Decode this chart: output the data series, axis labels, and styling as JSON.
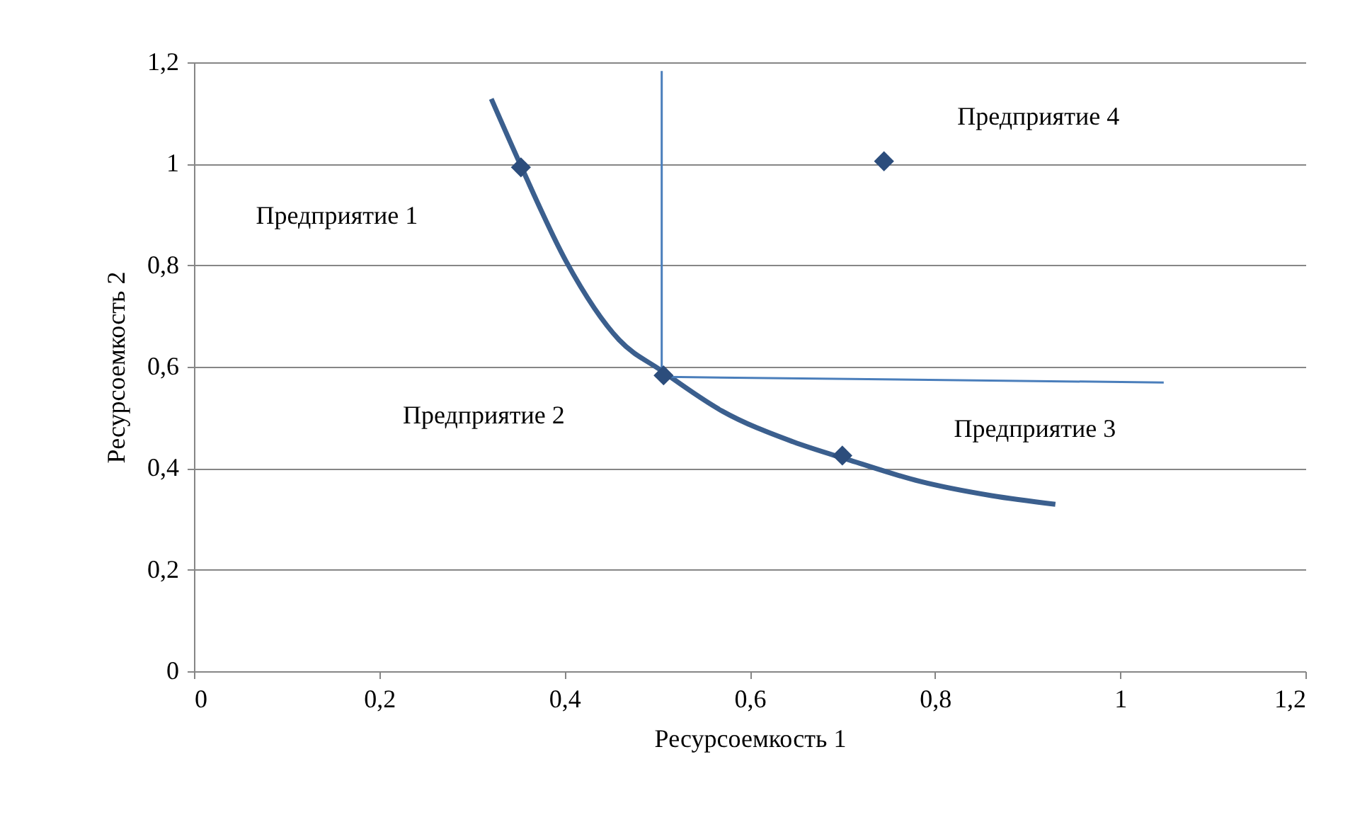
{
  "chart_data": {
    "type": "scatter",
    "xlabel": "Ресурсоемкость 1",
    "ylabel": "Ресурсоемкость 2",
    "xlim": [
      0,
      1.2
    ],
    "ylim": [
      0,
      1.2
    ],
    "xticks": [
      0,
      {
        "value": 0.2,
        "label": "0,2"
      },
      {
        "value": 0.4,
        "label": "0,4"
      },
      {
        "value": 0.6,
        "label": "0,6"
      },
      {
        "value": 0.8,
        "label": "0,8"
      },
      1,
      {
        "value": 1.2,
        "label": "1,2"
      }
    ],
    "yticks": [
      0,
      {
        "value": 0.2,
        "label": "0,2"
      },
      {
        "value": 0.4,
        "label": "0,4"
      },
      {
        "value": 0.6,
        "label": "0,6"
      },
      {
        "value": 0.8,
        "label": "0,8"
      },
      1,
      {
        "value": 1.2,
        "label": "1,2"
      }
    ],
    "grid": "y",
    "series": [
      {
        "type": "line",
        "marker": "none",
        "color": "#3b5f8e",
        "x": [
          0.321,
          0.353,
          0.402,
          0.459,
          0.505,
          0.57,
          0.647,
          0.708,
          0.784,
          0.861,
          0.93
        ],
        "values": [
          1.128,
          0.996,
          0.807,
          0.653,
          0.592,
          0.513,
          0.452,
          0.416,
          0.374,
          0.346,
          0.329
        ]
      },
      {
        "type": "line",
        "marker": "none",
        "color": "#4a7ebb",
        "x": [
          0.505,
          0.505
        ],
        "values": [
          0.583,
          1.183
        ]
      },
      {
        "type": "line",
        "marker": "none",
        "color": "#4a7ebb",
        "x": [
          0.51,
          1.047
        ],
        "values": [
          0.58,
          0.569
        ]
      },
      {
        "marker": "diamond",
        "color": "#2c4d7c",
        "x": [
          0.353,
          0.507,
          0.7,
          0.745
        ],
        "values": [
          0.993,
          0.583,
          0.425,
          1.005
        ]
      }
    ],
    "annotations": [
      "Предприятие 1",
      "Предприятие 2",
      "Предприятие 3",
      "Предприятие 4"
    ]
  }
}
